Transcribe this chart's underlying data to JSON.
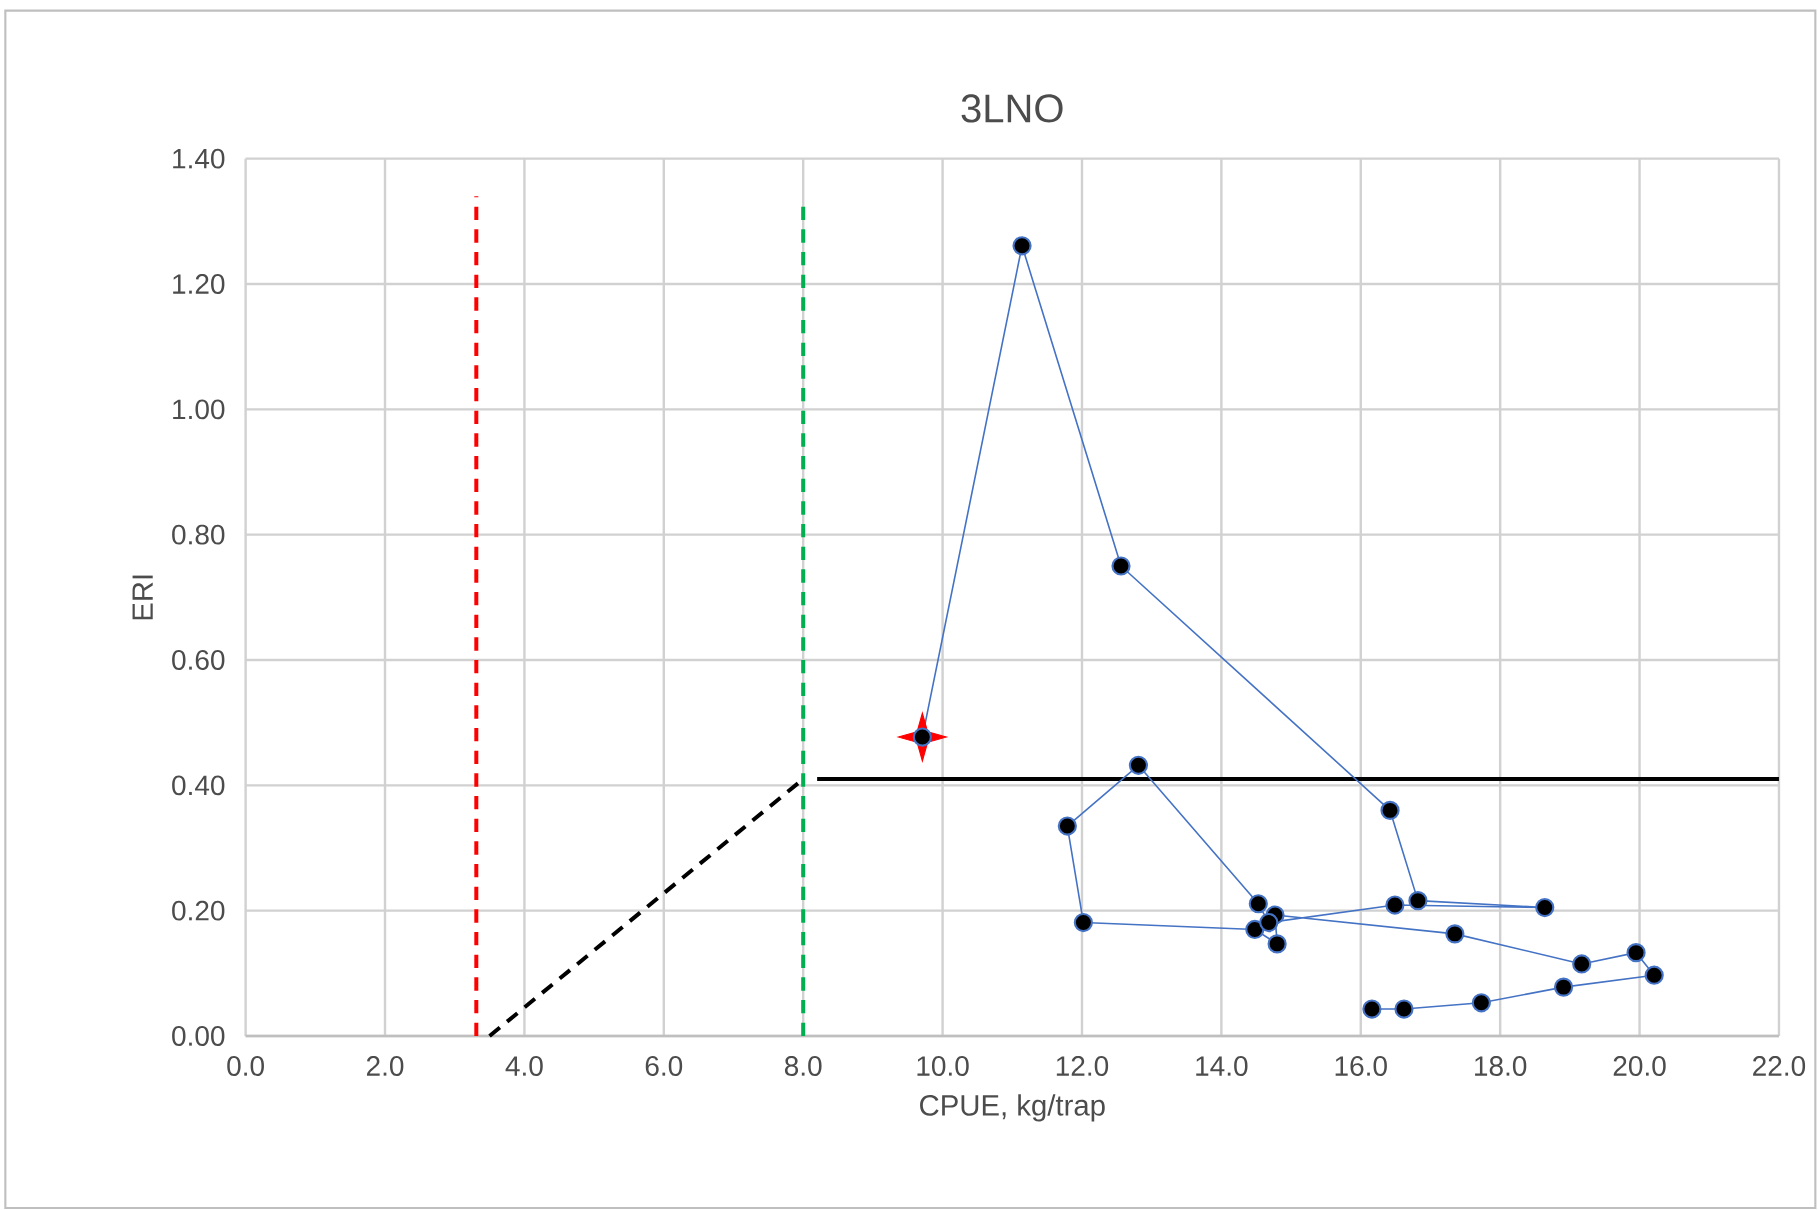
{
  "chart_data": {
    "type": "line",
    "title": "3LNO",
    "xlabel": "CPUE, kg/trap",
    "ylabel": "ERI",
    "xlim": [
      0,
      22
    ],
    "ylim": [
      0,
      1.4
    ],
    "xticks": [
      {
        "value": 0,
        "label": "0.0"
      },
      {
        "value": 2,
        "label": "2.0"
      },
      {
        "value": 4,
        "label": "4.0"
      },
      {
        "value": 6,
        "label": "6.0"
      },
      {
        "value": 8,
        "label": "8.0"
      },
      {
        "value": 10,
        "label": "10.0"
      },
      {
        "value": 12,
        "label": "12.0"
      },
      {
        "value": 14,
        "label": "14.0"
      },
      {
        "value": 16,
        "label": "16.0"
      },
      {
        "value": 18,
        "label": "18.0"
      },
      {
        "value": 20,
        "label": "20.0"
      },
      {
        "value": 22,
        "label": "22.0"
      }
    ],
    "yticks": [
      {
        "value": 0,
        "label": "0.00"
      },
      {
        "value": 0.2,
        "label": "0.20"
      },
      {
        "value": 0.4,
        "label": "0.40"
      },
      {
        "value": 0.6,
        "label": "0.60"
      },
      {
        "value": 0.8,
        "label": "0.80"
      },
      {
        "value": 1.0,
        "label": "1.00"
      },
      {
        "value": 1.2,
        "label": "1.20"
      },
      {
        "value": 1.4,
        "label": "1.40"
      }
    ],
    "grid": true,
    "series": [
      {
        "color": "#ff0000",
        "line_style": "dashed",
        "marker": "none",
        "x": [
          3.31,
          3.31
        ],
        "values": [
          0,
          1.34
        ]
      },
      {
        "color": "#00b050",
        "line_style": "dashed",
        "marker": "none",
        "x": [
          8.0,
          8.0
        ],
        "values": [
          0,
          1.33
        ]
      },
      {
        "color": "#000000",
        "line_style": "dashed",
        "marker": "none",
        "x": [
          3.5,
          8.0
        ],
        "values": [
          0,
          0.41
        ]
      },
      {
        "color": "#000000",
        "line_style": "solid",
        "marker": "none",
        "x": [
          8.2,
          22
        ],
        "values": [
          0.41,
          0.41
        ]
      },
      {
        "type": "scatter",
        "color": "#ff0000",
        "marker": "star",
        "x": [
          9.71
        ],
        "values": [
          0.477
        ]
      },
      {
        "color": "#4472c4",
        "line_style": "solid",
        "marker": "circle",
        "x": [
          16.16,
          16.62,
          17.73,
          18.91,
          20.21,
          19.95,
          19.17,
          17.35,
          14.77,
          14.8,
          14.48,
          12.02,
          11.79,
          12.81,
          14.53,
          14.68,
          16.49,
          18.64,
          16.82,
          16.42,
          12.56,
          11.14,
          9.71
        ],
        "values": [
          0.043,
          0.043,
          0.053,
          0.078,
          0.097,
          0.133,
          0.115,
          0.163,
          0.193,
          0.147,
          0.17,
          0.181,
          0.335,
          0.432,
          0.211,
          0.181,
          0.209,
          0.205,
          0.216,
          0.36,
          0.75,
          1.261,
          0.477
        ]
      }
    ]
  }
}
